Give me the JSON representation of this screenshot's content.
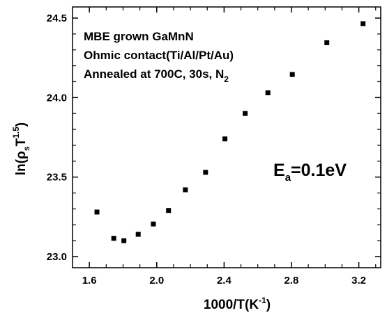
{
  "chart_data": {
    "type": "scatter",
    "xlim": [
      1.5,
      3.33
    ],
    "ylim": [
      22.93,
      24.57
    ],
    "x_ticks": [
      1.6,
      2.0,
      2.4,
      2.8,
      3.2
    ],
    "x_tick_labels": [
      "1.6",
      "2.0",
      "2.4",
      "2.8",
      "3.2"
    ],
    "y_ticks": [
      23.0,
      23.5,
      24.0,
      24.5
    ],
    "y_tick_labels": [
      "23.0",
      "23.5",
      "24.0",
      "24.5"
    ],
    "xlabel": {
      "base": "1000/T(K",
      "sup": "-1",
      "tail": ")"
    },
    "ylabel": {
      "pre": "ln(ρ",
      "sub": "s",
      "mid": "T",
      "sup": "1.5",
      "tail": ")"
    },
    "grid": false,
    "marker_color": "#000000",
    "points": [
      {
        "x": 1.645,
        "y": 23.28
      },
      {
        "x": 1.745,
        "y": 23.115
      },
      {
        "x": 1.805,
        "y": 23.1
      },
      {
        "x": 1.89,
        "y": 23.14
      },
      {
        "x": 1.98,
        "y": 23.205
      },
      {
        "x": 2.07,
        "y": 23.29
      },
      {
        "x": 2.17,
        "y": 23.42
      },
      {
        "x": 2.29,
        "y": 23.53
      },
      {
        "x": 2.405,
        "y": 23.74
      },
      {
        "x": 2.525,
        "y": 23.9
      },
      {
        "x": 2.66,
        "y": 24.03
      },
      {
        "x": 2.805,
        "y": 24.145
      },
      {
        "x": 3.01,
        "y": 24.345
      },
      {
        "x": 3.225,
        "y": 24.465
      }
    ],
    "annotations": {
      "line1": "MBE grown GaMnN",
      "line2": "Ohmic contact(Ti/Al/Pt/Au)",
      "line3_main": "Annealed at 700C, 30s, N",
      "line3_sub": "2",
      "ea_base": "E",
      "ea_sub": "a",
      "ea_value": "=0.1eV"
    }
  }
}
